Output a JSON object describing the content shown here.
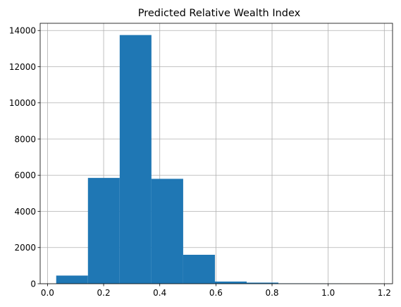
{
  "chart_data": {
    "type": "bar",
    "title": "Predicted Relative Wealth Index",
    "xlabel": "",
    "ylabel": "",
    "xlim": [
      -0.0261,
      1.2293
    ],
    "ylim": [
      0,
      14400
    ],
    "grid": true,
    "bar_color": "#1f77b4",
    "bin_edges": [
      0.031,
      0.1441,
      0.2572,
      0.3703,
      0.4834,
      0.5965,
      0.7096,
      0.8227,
      0.9358,
      1.0489,
      1.162
    ],
    "values": [
      450,
      5850,
      13750,
      5800,
      1600,
      120,
      60,
      20,
      8,
      5
    ],
    "x_ticks": [
      0.0,
      0.2,
      0.4,
      0.6,
      0.8,
      1.0,
      1.2
    ],
    "x_tick_labels": [
      "0.0",
      "0.2",
      "0.4",
      "0.6",
      "0.8",
      "1.0",
      "1.2"
    ],
    "y_ticks": [
      0,
      2000,
      4000,
      6000,
      8000,
      10000,
      12000,
      14000
    ],
    "y_tick_labels": [
      "0",
      "2000",
      "4000",
      "6000",
      "8000",
      "10000",
      "12000",
      "14000"
    ]
  }
}
